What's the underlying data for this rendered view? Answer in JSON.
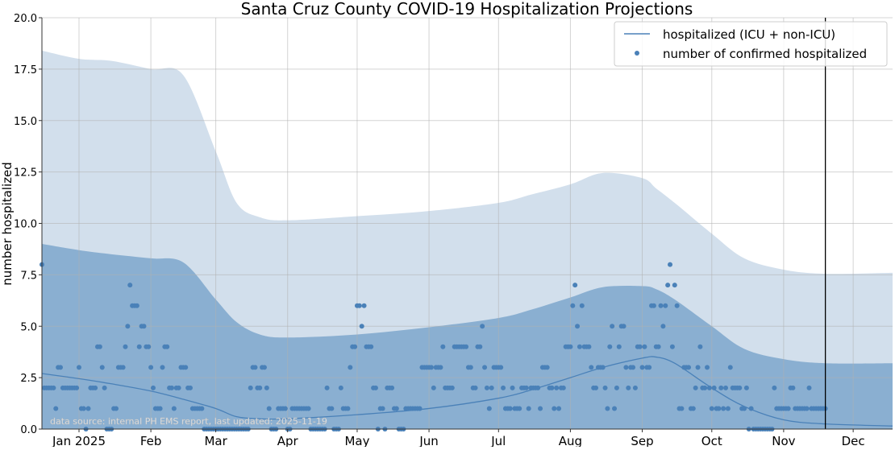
{
  "chart_data": {
    "type": "line",
    "title": "Santa Cruz County COVID-19 Hospitalization Projections",
    "xlabel": "",
    "ylabel": "number hospitalized",
    "xlim": [
      "2024-12-16",
      "2025-12-18"
    ],
    "ylim": [
      0,
      20
    ],
    "grid": true,
    "legend_placement": "top-right",
    "yticks": [
      0,
      2.5,
      5,
      7.5,
      10,
      12.5,
      15,
      17.5,
      20
    ],
    "ytick_labels": [
      "0.0",
      "2.5",
      "5.0",
      "7.5",
      "10.0",
      "12.5",
      "15.0",
      "17.5",
      "20.0"
    ],
    "xticks": [
      "2025-01-01",
      "2025-02-01",
      "2025-03-01",
      "2025-04-01",
      "2025-05-01",
      "2025-06-01",
      "2025-07-01",
      "2025-08-01",
      "2025-09-01",
      "2025-10-01",
      "2025-11-01",
      "2025-12-01"
    ],
    "xtick_labels": [
      "Jan 2025",
      "Feb",
      "Mar",
      "Apr",
      "May",
      "Jun",
      "Jul",
      "Aug",
      "Sep",
      "Oct",
      "Nov",
      "Dec"
    ],
    "vertical_line_date": "2025-11-19",
    "annotation": "data source: internal PH EMS report, last updated: 2025-11-19",
    "colors": {
      "line": "#4a81b8",
      "points": "#4a81b8",
      "inner_band": "#8aafd1",
      "outer_band": "#d2dfec",
      "vline": "#000000"
    },
    "legend": [
      {
        "label": "hospitalized (ICU + non-ICU)",
        "kind": "line"
      },
      {
        "label": "number of confirmed hospitalized",
        "kind": "point"
      }
    ],
    "model": {
      "dates": [
        "2024-12-16",
        "2025-01-01",
        "2025-01-15",
        "2025-02-01",
        "2025-02-15",
        "2025-03-01",
        "2025-03-10",
        "2025-03-20",
        "2025-04-01",
        "2025-05-01",
        "2025-06-01",
        "2025-07-01",
        "2025-07-15",
        "2025-08-01",
        "2025-08-15",
        "2025-09-01",
        "2025-09-07",
        "2025-09-15",
        "2025-10-01",
        "2025-10-15",
        "2025-11-01",
        "2025-11-19",
        "2025-12-18"
      ],
      "hospitalized": [
        2.7,
        2.45,
        2.2,
        1.85,
        1.45,
        1.0,
        0.6,
        0.5,
        0.5,
        0.7,
        1.0,
        1.5,
        1.9,
        2.5,
        3.0,
        3.45,
        3.5,
        3.2,
        2.0,
        1.1,
        0.45,
        0.25,
        0.15
      ],
      "inner_upper": [
        9.0,
        8.7,
        8.5,
        8.3,
        8.1,
        6.3,
        5.2,
        4.6,
        4.45,
        4.6,
        4.95,
        5.4,
        5.8,
        6.4,
        6.9,
        6.95,
        6.8,
        6.3,
        5.0,
        3.9,
        3.4,
        3.2,
        3.2
      ],
      "inner_lower": [
        0,
        0,
        0,
        0,
        0,
        0,
        0,
        0,
        0,
        0,
        0,
        0,
        0,
        0,
        0,
        0,
        0,
        0,
        0,
        0,
        0,
        0,
        0
      ],
      "outer_upper": [
        18.4,
        18.0,
        17.9,
        17.5,
        17.2,
        13.5,
        11.0,
        10.3,
        10.15,
        10.35,
        10.6,
        11.0,
        11.4,
        11.9,
        12.45,
        12.2,
        11.7,
        11.0,
        9.5,
        8.3,
        7.75,
        7.55,
        7.6
      ],
      "outer_lower": [
        0,
        0,
        0,
        0,
        0,
        0,
        0,
        0,
        0,
        0,
        0,
        0,
        0,
        0,
        0,
        0,
        0.3,
        0,
        0,
        0,
        0,
        0,
        0
      ]
    },
    "confirmed_hospitalized": [
      {
        "from": "2024-12-16",
        "values": [
          8,
          2,
          2,
          2,
          2,
          2,
          1,
          3,
          3,
          2,
          2,
          2,
          2,
          2,
          2,
          2
        ]
      },
      {
        "from": "2025-01-01",
        "values": [
          3,
          1,
          1,
          0,
          1,
          2,
          2,
          2,
          4,
          4,
          3,
          2,
          0,
          0,
          0,
          1,
          1,
          3,
          3,
          3,
          4,
          5,
          7,
          6,
          6,
          6,
          4,
          5,
          5,
          4,
          4
        ]
      },
      {
        "from": "2025-02-01",
        "values": [
          3,
          2,
          1,
          1,
          1,
          3,
          4,
          4,
          2,
          2,
          1,
          2,
          2,
          3,
          3,
          3,
          2,
          2,
          1,
          1,
          1,
          1,
          1,
          0,
          0,
          0,
          0,
          0
        ]
      },
      {
        "from": "2025-03-01",
        "values": [
          0,
          0,
          0,
          0,
          0,
          0,
          0,
          0,
          0,
          0,
          0,
          0,
          0,
          0,
          0,
          2,
          3,
          3,
          2,
          2,
          3,
          3,
          2,
          1,
          0,
          0,
          0,
          1,
          1,
          1,
          1
        ]
      },
      {
        "from": "2025-04-01",
        "values": [
          0,
          0,
          1,
          1,
          1,
          1,
          1,
          1,
          1,
          1,
          0,
          0,
          0,
          0,
          0,
          0,
          0,
          2,
          1,
          1,
          0,
          0,
          0,
          2,
          1,
          1,
          1,
          3,
          4,
          4
        ]
      },
      {
        "from": "2025-05-01",
        "values": [
          6,
          6,
          5,
          6,
          4,
          4,
          4,
          2,
          2,
          0,
          1,
          1,
          0,
          2,
          2,
          2,
          1,
          1,
          0,
          0,
          0,
          1,
          1,
          1,
          1,
          1,
          1,
          1,
          3,
          3,
          3
        ]
      },
      {
        "from": "2025-06-01",
        "values": [
          3,
          3,
          2,
          3,
          3,
          3,
          4,
          2,
          2,
          2,
          2,
          4,
          4,
          4,
          4,
          4,
          4,
          3,
          3,
          2,
          2,
          4,
          4,
          5,
          3,
          2,
          1,
          2,
          3,
          3
        ]
      },
      {
        "from": "2025-07-01",
        "values": [
          3,
          3,
          2,
          1,
          1,
          1,
          2,
          1,
          1,
          1,
          2,
          2,
          2,
          1,
          2,
          2,
          2,
          2,
          1,
          3,
          3,
          3,
          2,
          2,
          1,
          2,
          1,
          2,
          2,
          4,
          4
        ]
      },
      {
        "from": "2025-08-01",
        "values": [
          4,
          6,
          7,
          5,
          4,
          6,
          4,
          4,
          4,
          3,
          2,
          2,
          3,
          3,
          3,
          2,
          1,
          4,
          5,
          1,
          2,
          4,
          5,
          5,
          3,
          2,
          3,
          3,
          2,
          4,
          4
        ]
      },
      {
        "from": "2025-09-01",
        "values": [
          3,
          4,
          3,
          3,
          6,
          6,
          4,
          4,
          6,
          5,
          6,
          7,
          8,
          4,
          7,
          6,
          1,
          1,
          3,
          3,
          3,
          1,
          1,
          2,
          3,
          4,
          2,
          2,
          3,
          2
        ]
      },
      {
        "from": "2025-10-01",
        "values": [
          1,
          2,
          1,
          1,
          2,
          1,
          2,
          1,
          3,
          2,
          2,
          2,
          2,
          1,
          1,
          2,
          0,
          1,
          0,
          0,
          0,
          0,
          0,
          0,
          0,
          0,
          0,
          2,
          1,
          1,
          1
        ]
      },
      {
        "from": "2025-11-01",
        "values": [
          1,
          1,
          1,
          2,
          2,
          1,
          1,
          1,
          1,
          1,
          1,
          2,
          1,
          1,
          1,
          1,
          1,
          1,
          1
        ]
      }
    ]
  }
}
